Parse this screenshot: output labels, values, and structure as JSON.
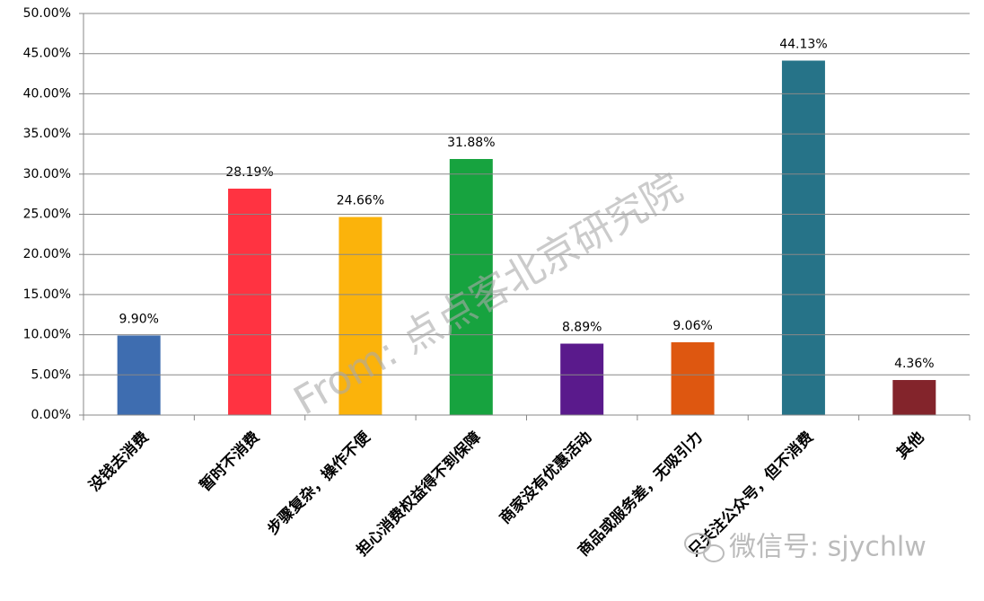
{
  "chart_data": {
    "type": "bar",
    "categories": [
      "没钱去消费",
      "暂时不消费",
      "步骤复杂，操作不便",
      "担心消费权益得不到保障",
      "商家没有优惠活动",
      "商品或服务差，无吸引力",
      "只关注公众号，但不消费",
      "其他"
    ],
    "values": [
      9.9,
      28.19,
      24.66,
      31.88,
      8.89,
      9.06,
      44.13,
      4.36
    ],
    "value_labels": [
      "9.90%",
      "28.19%",
      "24.66%",
      "31.88%",
      "8.89%",
      "9.06%",
      "44.13%",
      "4.36%"
    ],
    "colors": [
      "#3e6db0",
      "#ff3341",
      "#fbb30b",
      "#17a33f",
      "#5a1a8c",
      "#de5710",
      "#267388",
      "#83242b"
    ],
    "ylim": [
      0,
      50
    ],
    "yticks": [
      {
        "value": 0,
        "label": "0.00%"
      },
      {
        "value": 5,
        "label": "5.00%"
      },
      {
        "value": 10,
        "label": "10.00%"
      },
      {
        "value": 15,
        "label": "15.00%"
      },
      {
        "value": 20,
        "label": "20.00%"
      },
      {
        "value": 25,
        "label": "25.00%"
      },
      {
        "value": 30,
        "label": "30.00%"
      },
      {
        "value": 35,
        "label": "35.00%"
      },
      {
        "value": 40,
        "label": "40.00%"
      },
      {
        "value": 45,
        "label": "45.00%"
      },
      {
        "value": 50,
        "label": "50.00%"
      }
    ],
    "grid": true,
    "watermark": "From: 点点客北京研究院",
    "wechat_id": "微信号: sjychlw"
  }
}
